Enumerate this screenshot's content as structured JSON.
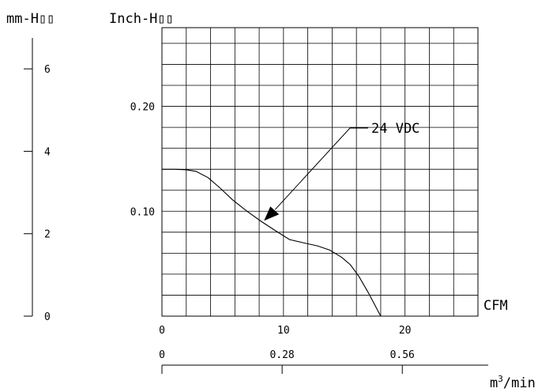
{
  "chart_data": {
    "type": "line",
    "units": {
      "left_axis": "mm-H▯▯",
      "pressure_axis": "Inch-H▯▯",
      "flow_axis": "CFM",
      "flow_axis_metric": "m³/min"
    },
    "xlim": [
      0,
      26
    ],
    "ylim": [
      0,
      0.275
    ],
    "mm_ylim": [
      0,
      7
    ],
    "x_ticks": [
      "0",
      "10",
      "20"
    ],
    "y_ticks": [
      "0.10",
      "0.20"
    ],
    "mm_ticks": [
      "0",
      "2",
      "4",
      "6"
    ],
    "m3_ticks": [
      "0",
      "0.28",
      "0.56"
    ],
    "grid": true,
    "series": [
      {
        "name": "24 VDC",
        "x": [
          0,
          1,
          2,
          2.8,
          3.8,
          4.8,
          5.8,
          7,
          8.2,
          9.4,
          10.5,
          11.6,
          12.8,
          13.8,
          14.8,
          15.5,
          16.2,
          17,
          18
        ],
        "y": [
          0.14,
          0.14,
          0.1395,
          0.138,
          0.132,
          0.122,
          0.111,
          0.1,
          0.09,
          0.081,
          0.073,
          0.07,
          0.067,
          0.063,
          0.056,
          0.049,
          0.038,
          0.022,
          0.0
        ]
      }
    ],
    "annotation": {
      "text": "24 VDC",
      "series": 0
    }
  }
}
